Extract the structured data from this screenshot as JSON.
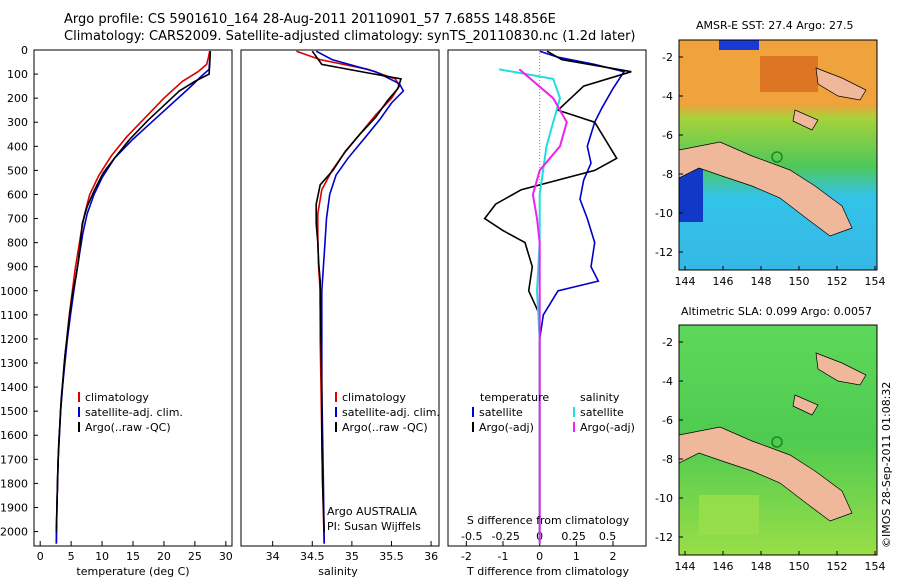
{
  "header": {
    "line1": "Argo profile: CS 5901610_164 28-Aug-2011 20110901_57 7.685S 148.856E",
    "line2": "Climatology: CARS2009. Satellite-adjusted climatology: synTS_20110830.nc (1.2d later)"
  },
  "maps": [
    {
      "title": "AMSR-E SST: 27.4 Argo: 27.5"
    },
    {
      "title": "Altimetric SLA: 0.099 Argo: 0.0057"
    }
  ],
  "imos_stamp": "©IMOS 28-Sep-2011 01:08:32",
  "argo_credit": {
    "line1": "Argo AUSTRALIA",
    "line2": "PI: Susan Wijffels"
  },
  "map_axes": {
    "x_ticks": [
      "144",
      "146",
      "148",
      "150",
      "152",
      "154"
    ],
    "y_ticks": [
      "-2",
      "-4",
      "-6",
      "-8",
      "-10",
      "-12"
    ]
  },
  "colors": {
    "climatology": "#dd0000",
    "satellite": "#0000cc",
    "argo": "#000000",
    "sal_satellite": "#22dddd",
    "sal_argo": "#ee22ee",
    "land": "#f0b89a",
    "marker": "#1a8a1a"
  },
  "chart_data": [
    {
      "type": "line",
      "xlabel": "temperature (deg C)",
      "ylabel": "",
      "xlim": [
        -1,
        31
      ],
      "ylim": [
        2060,
        0
      ],
      "x_ticks": [
        0,
        5,
        10,
        15,
        20,
        25,
        30
      ],
      "y_ticks": [
        0,
        100,
        200,
        300,
        400,
        500,
        600,
        700,
        800,
        900,
        1000,
        1100,
        1200,
        1300,
        1400,
        1500,
        1600,
        1700,
        1800,
        1900,
        2000
      ],
      "legend": [
        "climatology",
        "satellite-adj. clim.",
        "Argo(..raw -QC)"
      ],
      "series": [
        {
          "name": "climatology",
          "color": "#dd0000",
          "points": [
            [
              27.4,
              5
            ],
            [
              27.2,
              30
            ],
            [
              26.9,
              60
            ],
            [
              25.5,
              90
            ],
            [
              23,
              130
            ],
            [
              20,
              200
            ],
            [
              17,
              280
            ],
            [
              14,
              360
            ],
            [
              11.5,
              440
            ],
            [
              9.5,
              520
            ],
            [
              8,
              600
            ],
            [
              7.2,
              680
            ],
            [
              6.6,
              760
            ],
            [
              6.1,
              840
            ],
            [
              5.6,
              920
            ],
            [
              5.2,
              1000
            ],
            [
              4.7,
              1100
            ],
            [
              4.3,
              1200
            ],
            [
              3.9,
              1300
            ],
            [
              3.6,
              1400
            ],
            [
              3.3,
              1500
            ],
            [
              3.1,
              1600
            ],
            [
              2.9,
              1700
            ],
            [
              2.8,
              1800
            ],
            [
              2.7,
              1900
            ],
            [
              2.6,
              2050
            ]
          ]
        },
        {
          "name": "satellite-adj. clim.",
          "color": "#0000cc",
          "points": [
            [
              27.5,
              5
            ],
            [
              27.4,
              40
            ],
            [
              27.3,
              80
            ],
            [
              26,
              110
            ],
            [
              24,
              160
            ],
            [
              21,
              230
            ],
            [
              18,
              300
            ],
            [
              15,
              370
            ],
            [
              12,
              450
            ],
            [
              10,
              530
            ],
            [
              8.7,
              600
            ],
            [
              7.6,
              680
            ],
            [
              6.9,
              760
            ],
            [
              6.4,
              840
            ],
            [
              5.9,
              920
            ],
            [
              5.5,
              990
            ],
            [
              4.9,
              1100
            ],
            [
              4.4,
              1200
            ],
            [
              4,
              1300
            ],
            [
              3.6,
              1400
            ],
            [
              3.3,
              1500
            ],
            [
              3.1,
              1600
            ],
            [
              2.9,
              1700
            ],
            [
              2.8,
              1800
            ],
            [
              2.7,
              1900
            ],
            [
              2.6,
              2050
            ]
          ]
        },
        {
          "name": "Argo(..raw -QC)",
          "color": "#000000",
          "points": [
            [
              27.5,
              5
            ],
            [
              27.4,
              60
            ],
            [
              27.3,
              100
            ],
            [
              25,
              130
            ],
            [
              22.5,
              170
            ],
            [
              20,
              230
            ],
            [
              17.5,
              290
            ],
            [
              14.5,
              370
            ],
            [
              12,
              450
            ],
            [
              10.2,
              510
            ],
            [
              8.8,
              580
            ],
            [
              7.6,
              650
            ],
            [
              6.8,
              720
            ],
            [
              6.5,
              800
            ],
            [
              6.2,
              870
            ],
            [
              5.8,
              940
            ],
            [
              5.3,
              1000
            ],
            [
              4.8,
              1090
            ],
            [
              4.4,
              1180
            ],
            [
              4,
              1270
            ],
            [
              3.7,
              1360
            ],
            [
              3.4,
              1450
            ],
            [
              3.2,
              1540
            ],
            [
              3,
              1630
            ],
            [
              2.9,
              1720
            ],
            [
              2.8,
              1800
            ],
            [
              2.7,
              1900
            ],
            [
              2.6,
              2000
            ]
          ]
        }
      ]
    },
    {
      "type": "line",
      "xlabel": "salinity",
      "ylabel": "",
      "xlim": [
        33.6,
        36.1
      ],
      "ylim": [
        2060,
        0
      ],
      "x_ticks": [
        34,
        34.5,
        35,
        35.5,
        36
      ],
      "legend": [
        "climatology",
        "satellite-adj. clim.",
        "Argo(..raw -QC)"
      ],
      "series": [
        {
          "name": "climatology",
          "color": "#dd0000",
          "points": [
            [
              34.3,
              5
            ],
            [
              34.6,
              40
            ],
            [
              35.2,
              80
            ],
            [
              35.55,
              120
            ],
            [
              35.6,
              150
            ],
            [
              35.5,
              200
            ],
            [
              35.3,
              270
            ],
            [
              35.1,
              350
            ],
            [
              34.9,
              430
            ],
            [
              34.75,
              500
            ],
            [
              34.62,
              580
            ],
            [
              34.57,
              680
            ],
            [
              34.57,
              780
            ],
            [
              34.58,
              900
            ],
            [
              34.6,
              1000
            ],
            [
              34.6,
              1200
            ],
            [
              34.61,
              1400
            ],
            [
              34.62,
              1600
            ],
            [
              34.63,
              1800
            ],
            [
              34.65,
              2050
            ]
          ]
        },
        {
          "name": "satellite-adj. clim.",
          "color": "#0000cc",
          "points": [
            [
              34.55,
              5
            ],
            [
              34.75,
              40
            ],
            [
              35.3,
              90
            ],
            [
              35.6,
              140
            ],
            [
              35.65,
              170
            ],
            [
              35.5,
              220
            ],
            [
              35.35,
              290
            ],
            [
              35.15,
              370
            ],
            [
              34.95,
              450
            ],
            [
              34.8,
              520
            ],
            [
              34.72,
              600
            ],
            [
              34.68,
              700
            ],
            [
              34.66,
              800
            ],
            [
              34.64,
              900
            ],
            [
              34.62,
              1000
            ],
            [
              34.62,
              1200
            ],
            [
              34.62,
              1400
            ],
            [
              34.63,
              1600
            ],
            [
              34.64,
              1800
            ],
            [
              34.65,
              2050
            ]
          ]
        },
        {
          "name": "Argo(..raw -QC)",
          "color": "#000000",
          "points": [
            [
              34.5,
              5
            ],
            [
              34.62,
              60
            ],
            [
              35.2,
              95
            ],
            [
              35.62,
              120
            ],
            [
              35.58,
              160
            ],
            [
              35.45,
              210
            ],
            [
              35.3,
              280
            ],
            [
              35.1,
              350
            ],
            [
              34.92,
              420
            ],
            [
              34.76,
              500
            ],
            [
              34.6,
              560
            ],
            [
              34.55,
              640
            ],
            [
              34.55,
              720
            ],
            [
              34.57,
              800
            ],
            [
              34.58,
              880
            ],
            [
              34.6,
              960
            ],
            [
              34.6,
              1050
            ],
            [
              34.61,
              1200
            ],
            [
              34.62,
              1400
            ],
            [
              34.62,
              1600
            ],
            [
              34.63,
              1800
            ],
            [
              34.65,
              2000
            ]
          ]
        }
      ]
    },
    {
      "type": "line",
      "xlabel": "T difference from climatology",
      "top_xlabel": "S difference from climatology",
      "ylabel": "",
      "t_xlim": [
        -2.5,
        2.9
      ],
      "s_xlim": [
        -0.675,
        0.783
      ],
      "ylim": [
        2060,
        0
      ],
      "t_ticks": [
        -2,
        -1,
        0,
        1,
        2
      ],
      "s_ticks": [
        "-0.5",
        "-0.25",
        "0",
        "0.25",
        "0.5"
      ],
      "s_tick_values": [
        -0.5,
        -0.25,
        0,
        0.25,
        0.5
      ],
      "legend_headers": [
        "temperature",
        "salinity"
      ],
      "legend": [
        "satellite",
        "Argo(-adj)",
        "satellite",
        "Argo(-adj)"
      ],
      "t_series": [
        {
          "name": "satellite",
          "color": "#0000cc",
          "points": [
            [
              0,
              5
            ],
            [
              0.5,
              30
            ],
            [
              1.5,
              60
            ],
            [
              2.3,
              90
            ],
            [
              2,
              160
            ],
            [
              1.7,
              240
            ],
            [
              1.5,
              300
            ],
            [
              1.3,
              400
            ],
            [
              1.4,
              470
            ],
            [
              1.2,
              540
            ],
            [
              1.1,
              620
            ],
            [
              1.3,
              700
            ],
            [
              1.5,
              800
            ],
            [
              1.4,
              900
            ],
            [
              1.6,
              960
            ],
            [
              0.5,
              1000
            ],
            [
              0.1,
              1100
            ],
            [
              0,
              1200
            ],
            [
              0,
              1400
            ],
            [
              0,
              2000
            ]
          ]
        },
        {
          "name": "Argo(-adj)",
          "color": "#000000",
          "points": [
            [
              0.2,
              5
            ],
            [
              0.6,
              40
            ],
            [
              2.5,
              90
            ],
            [
              1.2,
              150
            ],
            [
              0.5,
              250
            ],
            [
              1.5,
              300
            ],
            [
              2.1,
              450
            ],
            [
              1.5,
              500
            ],
            [
              -0.5,
              580
            ],
            [
              -1.2,
              640
            ],
            [
              -1.5,
              700
            ],
            [
              -1,
              750
            ],
            [
              -0.4,
              800
            ],
            [
              -0.2,
              900
            ],
            [
              -0.3,
              1000
            ],
            [
              0,
              1100
            ],
            [
              0,
              1300
            ],
            [
              0,
              2000
            ]
          ]
        }
      ],
      "s_series": [
        {
          "name": "satellite",
          "color": "#22dddd",
          "points": [
            [
              -0.3,
              80
            ],
            [
              0.1,
              120
            ],
            [
              0.15,
              200
            ],
            [
              0.1,
              300
            ],
            [
              0.05,
              400
            ],
            [
              0,
              600
            ],
            [
              0,
              800
            ],
            [
              -0.02,
              1000
            ],
            [
              0,
              1200
            ],
            [
              0,
              1500
            ],
            [
              0,
              2050
            ]
          ]
        },
        {
          "name": "Argo(-adj)",
          "color": "#ee22ee",
          "points": [
            [
              -0.15,
              80
            ],
            [
              0.1,
              200
            ],
            [
              0.2,
              300
            ],
            [
              0.15,
              400
            ],
            [
              0,
              500
            ],
            [
              -0.05,
              600
            ],
            [
              -0.02,
              700
            ],
            [
              0,
              800
            ],
            [
              0,
              1000
            ],
            [
              0,
              1500
            ],
            [
              0,
              2050
            ]
          ]
        }
      ]
    }
  ]
}
